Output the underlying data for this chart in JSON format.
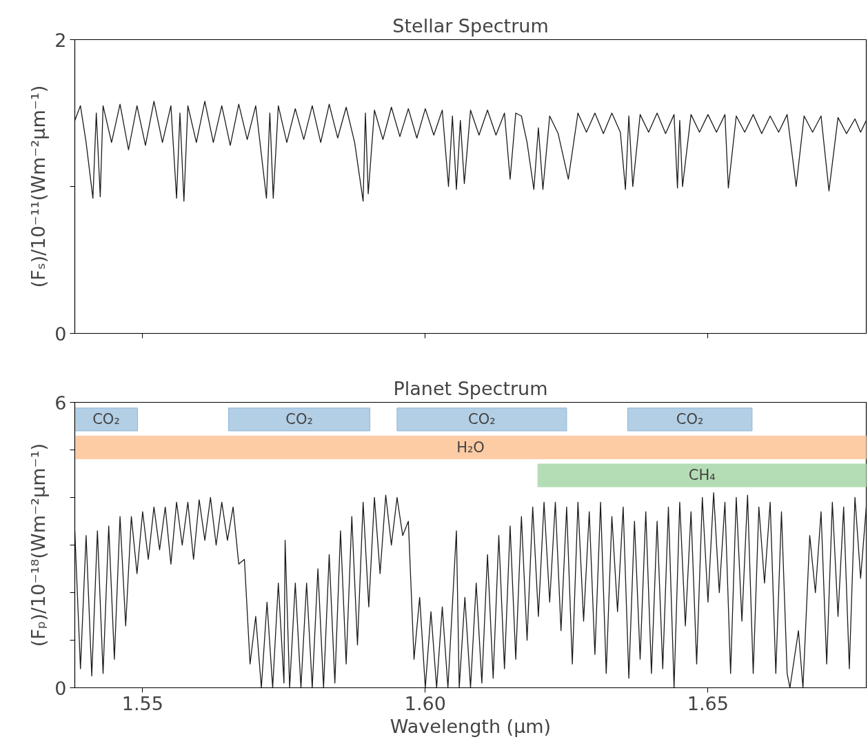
{
  "chart_data": [
    {
      "type": "line",
      "title": "Stellar Spectrum",
      "ylabel": "(Fₛ)/10⁻¹¹(Wm⁻²μm⁻¹)",
      "xlim": [
        1.538,
        1.678
      ],
      "ylim": [
        0,
        2
      ],
      "xticks": [
        1.55,
        1.6,
        1.65
      ],
      "yticks": [
        0,
        {
          "value": 1,
          "label": null
        },
        2
      ],
      "tick_labels": "y",
      "grid": false,
      "series": [
        {
          "color": "#1a1a1a",
          "x": [
            1.538,
            1.539,
            1.54,
            1.5412,
            1.5418,
            1.5425,
            1.543,
            1.5445,
            1.546,
            1.5475,
            1.549,
            1.5505,
            1.552,
            1.5535,
            1.555,
            1.556,
            1.5566,
            1.5573,
            1.558,
            1.5595,
            1.561,
            1.5625,
            1.564,
            1.5655,
            1.567,
            1.5685,
            1.57,
            1.5719,
            1.5725,
            1.5731,
            1.574,
            1.5755,
            1.577,
            1.5785,
            1.58,
            1.5815,
            1.583,
            1.5845,
            1.586,
            1.5875,
            1.589,
            1.5894,
            1.5899,
            1.591,
            1.5925,
            1.594,
            1.5955,
            1.597,
            1.5985,
            1.6,
            1.6015,
            1.603,
            1.6041,
            1.6048,
            1.6055,
            1.6062,
            1.6069,
            1.608,
            1.6095,
            1.611,
            1.6125,
            1.614,
            1.615,
            1.616,
            1.617,
            1.618,
            1.6192,
            1.62,
            1.6208,
            1.622,
            1.6235,
            1.6253,
            1.627,
            1.6285,
            1.63,
            1.6315,
            1.633,
            1.6345,
            1.6354,
            1.636,
            1.6367,
            1.638,
            1.6395,
            1.641,
            1.6425,
            1.644,
            1.6446,
            1.645,
            1.6455,
            1.647,
            1.6485,
            1.65,
            1.6515,
            1.653,
            1.6536,
            1.655,
            1.6565,
            1.658,
            1.6595,
            1.661,
            1.6625,
            1.664,
            1.6656,
            1.667,
            1.6685,
            1.67,
            1.6714,
            1.673,
            1.6745,
            1.676,
            1.677,
            1.678
          ],
          "values": [
            1.45,
            1.55,
            1.3,
            0.92,
            1.5,
            0.93,
            1.55,
            1.3,
            1.56,
            1.25,
            1.55,
            1.28,
            1.58,
            1.3,
            1.55,
            0.92,
            1.5,
            0.9,
            1.55,
            1.3,
            1.58,
            1.3,
            1.55,
            1.28,
            1.56,
            1.32,
            1.55,
            0.92,
            1.5,
            0.92,
            1.55,
            1.3,
            1.53,
            1.32,
            1.55,
            1.3,
            1.56,
            1.33,
            1.54,
            1.3,
            0.9,
            1.5,
            0.95,
            1.52,
            1.32,
            1.54,
            1.34,
            1.53,
            1.33,
            1.53,
            1.35,
            1.52,
            1.0,
            1.48,
            0.98,
            1.45,
            1.02,
            1.52,
            1.35,
            1.52,
            1.35,
            1.5,
            1.05,
            1.5,
            1.48,
            1.3,
            0.98,
            1.4,
            0.98,
            1.48,
            1.36,
            1.05,
            1.5,
            1.37,
            1.5,
            1.36,
            1.5,
            1.37,
            0.98,
            1.48,
            1.0,
            1.49,
            1.37,
            1.5,
            1.36,
            1.49,
            0.99,
            1.45,
            1.0,
            1.49,
            1.37,
            1.49,
            1.37,
            1.49,
            0.99,
            1.48,
            1.37,
            1.49,
            1.36,
            1.48,
            1.37,
            1.49,
            1.0,
            1.48,
            1.37,
            1.48,
            0.97,
            1.47,
            1.36,
            1.46,
            1.37,
            1.45
          ]
        }
      ]
    },
    {
      "type": "line",
      "title": "Planet Spectrum",
      "ylabel": "(Fₚ)/10⁻¹⁸(Wm⁻²μm⁻¹)",
      "xlabel": "Wavelength (μm)",
      "xlim": [
        1.538,
        1.678
      ],
      "ylim": [
        0,
        6
      ],
      "xticks": [
        1.55,
        {
          "value": 1.6,
          "label": "1.60"
        },
        1.65
      ],
      "yticks": [
        0,
        {
          "value": 1,
          "label": null
        },
        {
          "value": 2,
          "label": null
        },
        {
          "value": 3,
          "label": null
        },
        {
          "value": 4,
          "label": null
        },
        {
          "value": 5,
          "label": null
        },
        6
      ],
      "grid": false,
      "bands": [
        {
          "axis": "x",
          "from": 1.538,
          "to": 1.5491,
          "label": "CO₂",
          "color": "#b3cfe6"
        },
        {
          "axis": "x",
          "from": 1.5652,
          "to": 1.5902,
          "label": "CO₂",
          "color": "#b3cfe6"
        },
        {
          "axis": "x",
          "from": 1.595,
          "to": 1.625,
          "label": "CO₂",
          "color": "#b3cfe6"
        },
        {
          "axis": "x",
          "from": 1.6358,
          "to": 1.6578,
          "label": "CO₂",
          "color": "#b3cfe6"
        },
        {
          "axis": "x",
          "from": 1.538,
          "to": 1.678,
          "label": "H₂O",
          "color": "#fdcca4"
        },
        {
          "axis": "x",
          "from": 1.6199,
          "to": 1.678,
          "label": "CH₄",
          "color": "#b5ddb5"
        }
      ],
      "series": [
        {
          "color": "#1a1a1a",
          "x": [
            1.538,
            1.539,
            1.54,
            1.541,
            1.542,
            1.543,
            1.544,
            1.545,
            1.546,
            1.547,
            1.548,
            1.549,
            1.55,
            1.551,
            1.552,
            1.553,
            1.554,
            1.555,
            1.556,
            1.557,
            1.558,
            1.559,
            1.56,
            1.561,
            1.562,
            1.563,
            1.564,
            1.565,
            1.566,
            1.567,
            1.568,
            1.569,
            1.57,
            1.571,
            1.572,
            1.573,
            1.574,
            1.575,
            1.5752,
            1.576,
            1.577,
            1.578,
            1.579,
            1.58,
            1.581,
            1.582,
            1.583,
            1.584,
            1.585,
            1.586,
            1.587,
            1.588,
            1.589,
            1.59,
            1.591,
            1.592,
            1.593,
            1.594,
            1.595,
            1.596,
            1.597,
            1.598,
            1.599,
            1.6,
            1.601,
            1.602,
            1.603,
            1.604,
            1.6055,
            1.606,
            1.607,
            1.608,
            1.609,
            1.61,
            1.611,
            1.612,
            1.613,
            1.614,
            1.615,
            1.616,
            1.617,
            1.618,
            1.619,
            1.62,
            1.621,
            1.622,
            1.623,
            1.624,
            1.625,
            1.626,
            1.627,
            1.628,
            1.629,
            1.63,
            1.631,
            1.632,
            1.633,
            1.634,
            1.635,
            1.636,
            1.637,
            1.638,
            1.639,
            1.64,
            1.641,
            1.642,
            1.643,
            1.644,
            1.645,
            1.646,
            1.647,
            1.648,
            1.649,
            1.65,
            1.651,
            1.652,
            1.653,
            1.654,
            1.655,
            1.656,
            1.657,
            1.658,
            1.659,
            1.66,
            1.661,
            1.662,
            1.663,
            1.664,
            1.6645,
            1.666,
            1.6668,
            1.668,
            1.669,
            1.67,
            1.671,
            1.672,
            1.673,
            1.674,
            1.675,
            1.676,
            1.677,
            1.678
          ],
          "values": [
            3.3,
            0.4,
            3.2,
            0.25,
            3.3,
            0.3,
            3.4,
            0.6,
            3.6,
            1.3,
            3.6,
            2.4,
            3.7,
            2.7,
            3.8,
            2.9,
            3.8,
            2.6,
            3.9,
            3.0,
            3.9,
            2.7,
            3.95,
            3.1,
            4.0,
            3.0,
            3.9,
            3.1,
            3.8,
            2.6,
            2.7,
            0.5,
            1.5,
            0.0,
            1.8,
            0.0,
            2.2,
            0.1,
            3.1,
            0.0,
            2.2,
            0.0,
            2.2,
            0.0,
            2.5,
            0.0,
            2.8,
            0.1,
            3.3,
            0.5,
            3.6,
            0.9,
            3.9,
            1.7,
            4.0,
            2.4,
            4.05,
            3.0,
            4.0,
            3.2,
            3.5,
            0.6,
            1.9,
            0.0,
            1.6,
            0.0,
            1.7,
            0.0,
            3.3,
            0.0,
            1.9,
            0.0,
            2.2,
            0.1,
            2.8,
            0.2,
            3.2,
            0.4,
            3.4,
            0.6,
            3.6,
            1.0,
            3.8,
            1.5,
            3.9,
            1.8,
            3.9,
            1.2,
            3.8,
            0.5,
            3.9,
            1.4,
            3.7,
            0.7,
            3.9,
            0.3,
            3.6,
            1.6,
            3.8,
            0.2,
            3.5,
            0.6,
            3.7,
            0.3,
            3.5,
            0.4,
            3.8,
            0.0,
            3.9,
            1.3,
            3.7,
            0.5,
            4.0,
            1.8,
            4.1,
            2.0,
            3.9,
            0.3,
            4.0,
            1.4,
            4.05,
            0.3,
            3.8,
            2.2,
            3.9,
            0.3,
            3.7,
            0.3,
            0.0,
            1.2,
            0.0,
            3.2,
            2.0,
            3.7,
            0.5,
            3.9,
            1.5,
            3.8,
            0.4,
            4.0,
            2.3,
            3.8
          ]
        }
      ]
    }
  ]
}
